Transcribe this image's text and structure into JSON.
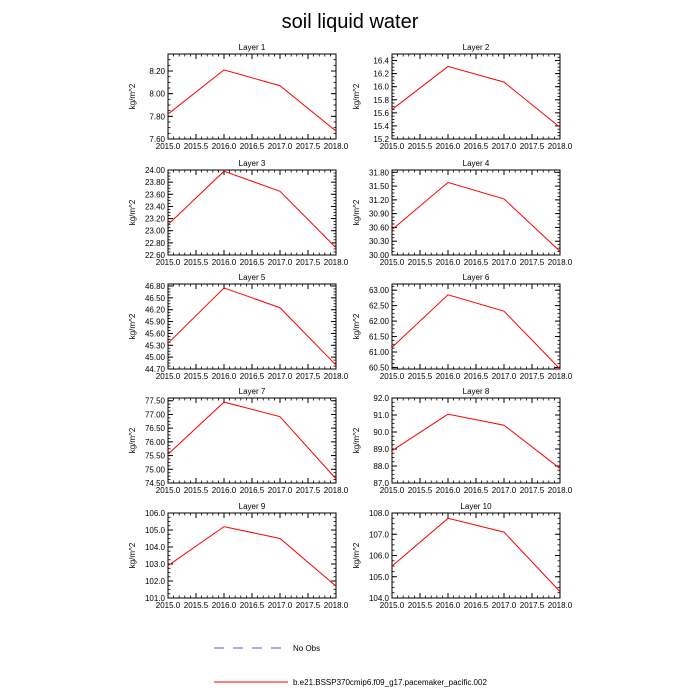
{
  "figure": {
    "title": "soil liquid water"
  },
  "legend": {
    "entries": [
      {
        "label": "No Obs",
        "style": "dashed",
        "color": "#5b5bd6"
      },
      {
        "label": "b.e21.BSSP370cmip6.f09_g17.pacemaker_pacific.002",
        "style": "solid",
        "color": "#ff0000"
      }
    ]
  },
  "chart_data": [
    {
      "type": "line",
      "title": "Layer 1",
      "ylabel": "kg/m^2",
      "x": [
        2015,
        2016,
        2017,
        2018
      ],
      "values": [
        7.82,
        8.21,
        8.07,
        7.67
      ],
      "xlim": [
        2015,
        2018
      ],
      "ylim": [
        7.6,
        8.35
      ],
      "xticks": [
        "2015.0",
        "2015.5",
        "2016.0",
        "2016.5",
        "2017.0",
        "2017.5",
        "2018.0"
      ],
      "yticks": [
        "7.60",
        "7.80",
        "8.00",
        "8.20"
      ]
    },
    {
      "type": "line",
      "title": "Layer 2",
      "ylabel": "kg/m^2",
      "x": [
        2015,
        2016,
        2017,
        2018
      ],
      "values": [
        15.65,
        16.31,
        16.07,
        15.38
      ],
      "xlim": [
        2015,
        2018
      ],
      "ylim": [
        15.2,
        16.5
      ],
      "xticks": [
        "2015.0",
        "2015.5",
        "2016.0",
        "2016.5",
        "2017.0",
        "2017.5",
        "2018.0"
      ],
      "yticks": [
        "15.2",
        "15.4",
        "15.6",
        "15.8",
        "16.0",
        "16.2",
        "16.4"
      ]
    },
    {
      "type": "line",
      "title": "Layer 3",
      "ylabel": "kg/m^2",
      "x": [
        2015,
        2016,
        2017,
        2018
      ],
      "values": [
        23.1,
        23.98,
        23.65,
        22.72
      ],
      "xlim": [
        2015,
        2018
      ],
      "ylim": [
        22.6,
        24.0
      ],
      "xticks": [
        "2015.0",
        "2015.5",
        "2016.0",
        "2016.5",
        "2017.0",
        "2017.5",
        "2018.0"
      ],
      "yticks": [
        "22.60",
        "22.80",
        "23.00",
        "23.20",
        "23.40",
        "23.60",
        "23.80",
        "24.00"
      ]
    },
    {
      "type": "line",
      "title": "Layer 4",
      "ylabel": "kg/m^2",
      "x": [
        2015,
        2016,
        2017,
        2018
      ],
      "values": [
        30.55,
        31.58,
        31.22,
        30.08
      ],
      "xlim": [
        2015,
        2018
      ],
      "ylim": [
        30.0,
        31.85
      ],
      "xticks": [
        "2015.0",
        "2015.5",
        "2016.0",
        "2016.5",
        "2017.0",
        "2017.5",
        "2018.0"
      ],
      "yticks": [
        "30.00",
        "30.30",
        "30.60",
        "30.90",
        "31.20",
        "31.50",
        "31.80"
      ]
    },
    {
      "type": "line",
      "title": "Layer 5",
      "ylabel": "kg/m^2",
      "x": [
        2015,
        2016,
        2017,
        2018
      ],
      "values": [
        45.35,
        46.75,
        46.25,
        44.8
      ],
      "xlim": [
        2015,
        2018
      ],
      "ylim": [
        44.7,
        46.85
      ],
      "xticks": [
        "2015.0",
        "2015.5",
        "2016.0",
        "2016.5",
        "2017.0",
        "2017.5",
        "2018.0"
      ],
      "yticks": [
        "44.70",
        "45.00",
        "45.30",
        "45.60",
        "45.90",
        "46.20",
        "46.50",
        "46.80"
      ]
    },
    {
      "type": "line",
      "title": "Layer 6",
      "ylabel": "kg/m^2",
      "x": [
        2015,
        2016,
        2017,
        2018
      ],
      "values": [
        61.15,
        62.85,
        62.32,
        60.45
      ],
      "xlim": [
        2015,
        2018
      ],
      "ylim": [
        60.45,
        63.2
      ],
      "xticks": [
        "2015.0",
        "2015.5",
        "2016.0",
        "2016.5",
        "2017.0",
        "2017.5",
        "2018.0"
      ],
      "yticks": [
        "60.50",
        "61.00",
        "61.50",
        "62.00",
        "62.50",
        "63.00"
      ]
    },
    {
      "type": "line",
      "title": "Layer 7",
      "ylabel": "kg/m^2",
      "x": [
        2015,
        2016,
        2017,
        2018
      ],
      "values": [
        75.55,
        77.45,
        76.92,
        74.65
      ],
      "xlim": [
        2015,
        2018
      ],
      "ylim": [
        74.5,
        77.6
      ],
      "xticks": [
        "2015.0",
        "2015.5",
        "2016.0",
        "2016.5",
        "2017.0",
        "2017.5",
        "2018.0"
      ],
      "yticks": [
        "74.50",
        "75.00",
        "75.50",
        "76.00",
        "76.50",
        "77.00",
        "77.50"
      ]
    },
    {
      "type": "line",
      "title": "Layer 8",
      "ylabel": "kg/m^2",
      "x": [
        2015,
        2016,
        2017,
        2018
      ],
      "values": [
        88.9,
        91.05,
        90.4,
        87.85
      ],
      "xlim": [
        2015,
        2018
      ],
      "ylim": [
        87.0,
        92.0
      ],
      "xticks": [
        "2015.0",
        "2015.5",
        "2016.0",
        "2016.5",
        "2017.0",
        "2017.5",
        "2018.0"
      ],
      "yticks": [
        "87.0",
        "88.0",
        "89.0",
        "90.0",
        "91.0",
        "92.0"
      ]
    },
    {
      "type": "line",
      "title": "Layer 9",
      "ylabel": "kg/m^2",
      "x": [
        2015,
        2016,
        2017,
        2018
      ],
      "values": [
        102.9,
        105.2,
        104.5,
        101.7
      ],
      "xlim": [
        2015,
        2018
      ],
      "ylim": [
        101.0,
        106.0
      ],
      "xticks": [
        "2015.0",
        "2015.5",
        "2016.0",
        "2016.5",
        "2017.0",
        "2017.5",
        "2018.0"
      ],
      "yticks": [
        "101.0",
        "102.0",
        "103.0",
        "104.0",
        "105.0",
        "106.0"
      ]
    },
    {
      "type": "line",
      "title": "Layer 10",
      "ylabel": "kg/m^2",
      "x": [
        2015,
        2016,
        2017,
        2018
      ],
      "values": [
        105.5,
        107.75,
        107.1,
        104.3
      ],
      "xlim": [
        2015,
        2018
      ],
      "ylim": [
        104.0,
        108.0
      ],
      "xticks": [
        "2015.0",
        "2015.5",
        "2016.0",
        "2016.5",
        "2017.0",
        "2017.5",
        "2018.0"
      ],
      "yticks": [
        "104.0",
        "105.0",
        "106.0",
        "107.0",
        "108.0"
      ]
    }
  ]
}
